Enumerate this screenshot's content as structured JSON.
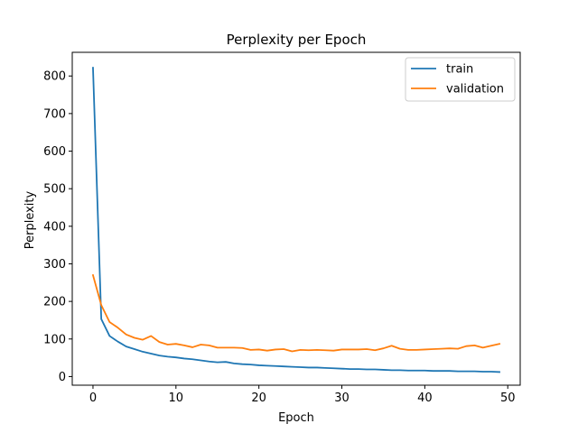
{
  "chart_data": {
    "type": "line",
    "title": "Perplexity per Epoch",
    "xlabel": "Epoch",
    "ylabel": "Perplexity",
    "xlim": [
      -2.5,
      51.5
    ],
    "ylim": [
      -23,
      863
    ],
    "xticks": [
      0,
      10,
      20,
      30,
      40,
      50
    ],
    "yticks": [
      0,
      100,
      200,
      300,
      400,
      500,
      600,
      700,
      800
    ],
    "grid": false,
    "legend_position": "top-right",
    "x": [
      0,
      1,
      2,
      3,
      4,
      5,
      6,
      7,
      8,
      9,
      10,
      11,
      12,
      13,
      14,
      15,
      16,
      17,
      18,
      19,
      20,
      21,
      22,
      23,
      24,
      25,
      26,
      27,
      28,
      29,
      30,
      31,
      32,
      33,
      34,
      35,
      36,
      37,
      38,
      39,
      40,
      41,
      42,
      43,
      44,
      45,
      46,
      47,
      48,
      49
    ],
    "series": [
      {
        "name": "train",
        "color": "#1f77b4",
        "values": [
          822,
          153,
          108,
          93,
          80,
          73,
          66,
          61,
          56,
          53,
          51,
          48,
          46,
          43,
          40,
          38,
          39,
          35,
          33,
          32,
          30,
          29,
          28,
          27,
          26,
          25,
          24,
          24,
          23,
          22,
          21,
          20,
          20,
          19,
          19,
          18,
          17,
          17,
          16,
          16,
          16,
          15,
          15,
          15,
          14,
          14,
          14,
          13,
          13,
          12
        ]
      },
      {
        "name": "validation",
        "color": "#ff7f0e",
        "values": [
          270,
          190,
          145,
          130,
          112,
          103,
          98,
          108,
          92,
          85,
          87,
          83,
          78,
          85,
          83,
          77,
          77,
          77,
          76,
          71,
          72,
          69,
          72,
          73,
          67,
          71,
          70,
          71,
          70,
          69,
          72,
          72,
          72,
          73,
          70,
          75,
          82,
          74,
          71,
          71,
          72,
          73,
          74,
          75,
          74,
          81,
          83,
          77,
          82,
          87
        ]
      }
    ]
  }
}
